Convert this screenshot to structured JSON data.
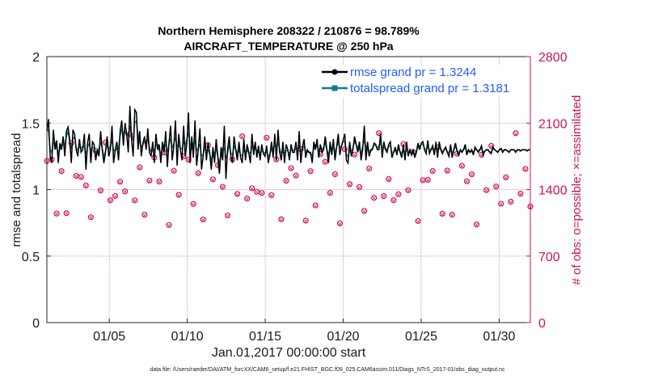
{
  "chart_data": {
    "type": "line",
    "title_line1": "Northern Hemisphere 208322 / 210876 = 98.789%",
    "title_line2": "AIRCRAFT_TEMPERATURE @ 250 hPa",
    "xlabel": "Jan.01,2017 00:00:00 start",
    "ylabel_left": "rmse and totalspread",
    "ylabel_right": "# of obs: o=possible; ×=assimilated",
    "footer": "data file: /Users/raeder/DAI/ATM_forcXX/CAM6_setup/f.e21.FHIST_BGC.f09_025.CAM6assim.011/Diags_NTrS_2017-01/obs_diag_output.nc",
    "xlim": [
      1,
      32
    ],
    "ylim_left": [
      0,
      2
    ],
    "ylim_right": [
      0,
      2800
    ],
    "x_ticks": [
      5,
      10,
      15,
      20,
      25,
      30
    ],
    "x_tick_labels": [
      "01/05",
      "01/10",
      "01/15",
      "01/20",
      "01/25",
      "01/30"
    ],
    "y_ticks_left": [
      0,
      0.5,
      1,
      1.5,
      2
    ],
    "y_tick_labels_left": [
      "0",
      "0.5",
      "1",
      "1.5",
      "2"
    ],
    "y_ticks_right": [
      0,
      700,
      1400,
      2100,
      2800
    ],
    "y_tick_labels_right": [
      "0",
      "700",
      "1400",
      "2100",
      "2800"
    ],
    "colors": {
      "rmse": "#000000",
      "spread": "#0f7f86",
      "obs": "#d1155c",
      "grid": "#e6cfd8",
      "legend_text": "#1f5cff",
      "right_axis": "#c8155a"
    },
    "legend": {
      "position": "top-right",
      "entries": [
        "rmse grand pr = 1.3244",
        "totalspread grand pr = 1.3181"
      ]
    },
    "series": [
      {
        "name": "rmse",
        "values": [
          1.44,
          1.53,
          1.25,
          1.2,
          1.45,
          1.3,
          1.37,
          1.2,
          1.35,
          1.3,
          1.4,
          1.25,
          1.44,
          1.47,
          1.38,
          1.2,
          1.45,
          1.42,
          1.3,
          1.25,
          1.38,
          1.28,
          1.3,
          1.42,
          1.15,
          1.35,
          1.42,
          1.2,
          1.36,
          1.34,
          1.22,
          1.3,
          1.25,
          1.44,
          1.3,
          1.2,
          1.28,
          1.4,
          1.25,
          1.3,
          1.48,
          1.2,
          1.3,
          1.36,
          1.22,
          1.44,
          1.52,
          1.33,
          1.5,
          1.42,
          1.28,
          1.63,
          1.38,
          1.25,
          1.6,
          1.58,
          1.3,
          1.44,
          1.25,
          1.35,
          1.4,
          1.3,
          1.46,
          1.28,
          1.25,
          1.36,
          1.2,
          1.42,
          1.3,
          1.34,
          1.2,
          1.36,
          1.28,
          1.44,
          1.17,
          1.35,
          1.48,
          1.22,
          1.33,
          1.52,
          1.18,
          1.42,
          1.3,
          1.22,
          1.48,
          1.25,
          1.35,
          1.58,
          1.2,
          1.4,
          1.24,
          1.52,
          1.18,
          1.3,
          1.46,
          1.15,
          1.25,
          1.4,
          1.22,
          1.35,
          1.28,
          1.15,
          1.32,
          1.2,
          1.38,
          1.25,
          1.12,
          1.32,
          1.22,
          1.48,
          1.08,
          1.3,
          1.4,
          1.25,
          1.2,
          1.4,
          1.3,
          1.22,
          1.36,
          1.24,
          1.2,
          1.38,
          1.22,
          1.34,
          1.28,
          1.2,
          1.42,
          1.26,
          1.36,
          1.24,
          1.33,
          1.22,
          1.34,
          1.27,
          1.25,
          1.33,
          1.2,
          1.26,
          1.36,
          1.24,
          1.42,
          1.22,
          1.45,
          1.28,
          1.22,
          1.36,
          1.2,
          1.34,
          1.3,
          1.22,
          1.34,
          1.28,
          1.28,
          1.36,
          1.22,
          1.44,
          1.2,
          1.32,
          1.38,
          1.24,
          1.3,
          1.28,
          1.28,
          1.2,
          1.36,
          1.3,
          1.38,
          1.24,
          1.34,
          1.28,
          1.3,
          1.4,
          1.3,
          1.2,
          1.36,
          1.26,
          1.38,
          1.22,
          1.32,
          1.42,
          1.26,
          1.33,
          1.37,
          1.42,
          1.22,
          1.2,
          1.36,
          1.25,
          1.3,
          1.4,
          1.34,
          1.28,
          1.36,
          1.22,
          1.3,
          1.48,
          1.22,
          1.36,
          1.25,
          1.3,
          1.3,
          1.35,
          1.34,
          1.3,
          1.3,
          1.42,
          1.24,
          1.36,
          1.3,
          1.28,
          1.34,
          1.36,
          1.24,
          1.28,
          1.32,
          1.26,
          1.34,
          1.28,
          1.24,
          1.34,
          1.22,
          1.36,
          1.25,
          1.3,
          1.26,
          1.3,
          1.24,
          1.28,
          1.35,
          1.3,
          1.35,
          1.36,
          1.3,
          1.27,
          1.37,
          1.27,
          1.3,
          1.33,
          1.26,
          1.36,
          1.24,
          1.36,
          1.3,
          1.27,
          1.3,
          1.32,
          1.28,
          1.25,
          1.34,
          1.24,
          1.3,
          1.35,
          1.29,
          1.26,
          1.3,
          1.28,
          1.3,
          1.34,
          1.26,
          1.3,
          1.28,
          1.3,
          1.26,
          1.32,
          1.3,
          1.28,
          1.3,
          1.33,
          1.26,
          1.29,
          1.3,
          1.3,
          1.28,
          1.27,
          1.32,
          1.3,
          1.29,
          1.28,
          1.3,
          1.31,
          1.28,
          1.3,
          1.3,
          1.29,
          1.28,
          1.3,
          1.3,
          1.3,
          1.28,
          1.3,
          1.3,
          1.29,
          1.3,
          1.3,
          1.3,
          1.29,
          1.3,
          1.3
        ]
      }
    ]
  }
}
